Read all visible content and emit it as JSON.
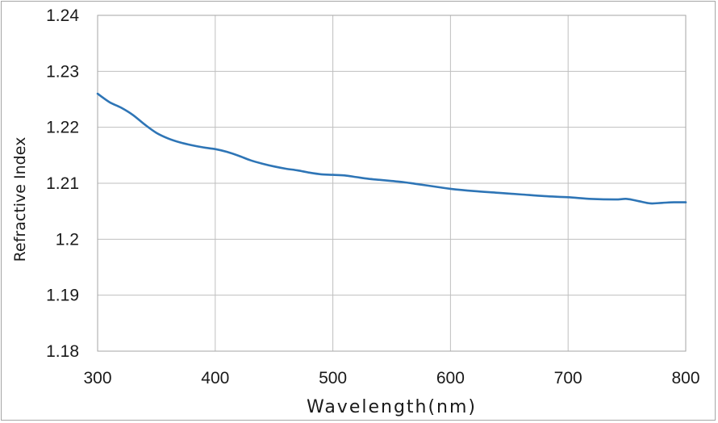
{
  "chart_data": {
    "type": "line",
    "title": "",
    "xlabel": "Wavelength(nm)",
    "ylabel": "Refractive Index",
    "xlim": [
      300,
      800
    ],
    "ylim": [
      1.18,
      1.24
    ],
    "x_ticks": [
      300,
      400,
      500,
      600,
      700,
      800
    ],
    "x_tick_labels": [
      "300",
      "400",
      "500",
      "600",
      "700",
      "800"
    ],
    "y_ticks": [
      1.18,
      1.19,
      1.2,
      1.21,
      1.22,
      1.23,
      1.24
    ],
    "y_tick_labels": [
      "1.18",
      "1.19",
      "1.2",
      "1.21",
      "1.22",
      "1.23",
      "1.24"
    ],
    "grid": true,
    "line_color": "#2e75b6",
    "series": [
      {
        "x": [
          300,
          310,
          320,
          330,
          340,
          350,
          360,
          370,
          380,
          390,
          400,
          410,
          420,
          430,
          440,
          450,
          460,
          470,
          480,
          490,
          500,
          510,
          520,
          530,
          540,
          550,
          560,
          570,
          580,
          590,
          600,
          620,
          640,
          660,
          680,
          700,
          720,
          740,
          750,
          760,
          770,
          780,
          790,
          800
        ],
        "y": [
          1.226,
          1.2245,
          1.2235,
          1.2222,
          1.2205,
          1.219,
          1.218,
          1.2173,
          1.2168,
          1.2164,
          1.2161,
          1.2156,
          1.2149,
          1.2141,
          1.2135,
          1.213,
          1.2126,
          1.2123,
          1.2119,
          1.2116,
          1.2115,
          1.2114,
          1.2111,
          1.2108,
          1.2106,
          1.2104,
          1.2102,
          1.2099,
          1.2096,
          1.2093,
          1.209,
          1.2086,
          1.2083,
          1.208,
          1.2077,
          1.2075,
          1.2072,
          1.2071,
          1.2072,
          1.2068,
          1.2064,
          1.2065,
          1.2066,
          1.2066
        ]
      }
    ]
  }
}
